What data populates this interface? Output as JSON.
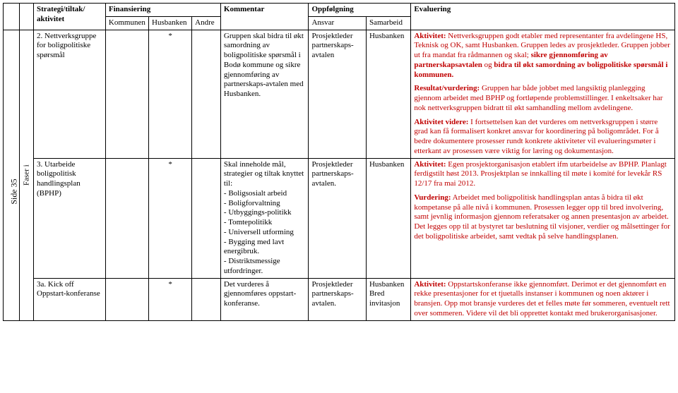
{
  "sideLabel": "Side 35",
  "headers": {
    "strategi": "Strategi/tiltak/ aktivitet",
    "finansiering": "Finansiering",
    "kommunen": "Kommunen",
    "husbanken": "Husbanken",
    "andre": "Andre",
    "kommentar": "Kommentar",
    "oppfolgning": "Oppfølgning",
    "ansvar": "Ansvar",
    "samarbeid": "Samarbeid",
    "evaluering": "Evaluering"
  },
  "faserLabel": "Faser i",
  "row1": {
    "strategi": "2. Nettverksgruppe for boligpolitiske spørsmål",
    "fin": "*",
    "kommentar": "Gruppen skal bidra til økt samordning av boligpolitiske spørsmål i Bodø kommune og sikre gjennomføring av partnerskaps-avtalen med Husbanken.",
    "ansvar": "Prosjektleder partnerskaps-avtalen",
    "samarbeid": "Husbanken",
    "eval_p1_a": "Aktivitet:",
    "eval_p1_b": " Nettverksgruppen godt etabler med representanter fra avdelingene HS, Teknisk og OK, samt Husbanken. Gruppen ledes av prosjektleder. Gruppen jobber ut fra mandat fra rådmannen og skal; ",
    "eval_p1_c": "sikre gjennomføring av partnerskapsavtalen",
    "eval_p1_d": " og ",
    "eval_p1_e": "bidra til økt samordning av boligpolitiske spørsmål i kommunen.",
    "eval_p2_a": "Resultat/vurdering:",
    "eval_p2_b": " Gruppen har både jobbet med langsiktig planlegging gjennom arbeidet med BPHP og fortløpende problemstillinger. I enkeltsaker har nok nettverksgruppen bidratt til økt samhandling mellom avdelingene.",
    "eval_p3_a": "Aktivitet videre:",
    "eval_p3_b": " I fortsettelsen kan det vurderes om nettverksgruppen i større grad kan få formalisert konkret ansvar for koordinering på boligområdet. For å bedre dokumentere prosesser rundt konkrete aktiviteter vil evalueringsmøter i etterkant av prosessen være viktig for læring og dokumentasjon."
  },
  "row2": {
    "strategi": "3. Utarbeide boligpolitisk handlingsplan (BPHP)",
    "fin": "*",
    "kom_intro": "Skal inneholde mål, strategier og tiltak knyttet til:",
    "kom_b1": "- Boligsosialt arbeid",
    "kom_b2": "- Boligforvaltning",
    "kom_b3": "- Utbyggings-politikk",
    "kom_b4": "- Tomtepolitikk",
    "kom_b5": "- Universell utforming",
    "kom_b6": "- Bygging med lavt energibruk.",
    "kom_b7": "- Distriktsmessige utfordringer.",
    "ansvar": "Prosjektleder partnerskaps-avtalen.",
    "samarbeid": "Husbanken",
    "eval_p1_a": "Aktivitet:",
    "eval_p1_b": " Egen prosjektorganisasjon etablert ifm utarbeidelse av BPHP. Planlagt ferdigstilt høst 2013. Prosjektplan se innkalling til møte i komité for levekår RS 12/17 fra mai 2012.",
    "eval_p2_a": "Vurdering:",
    "eval_p2_b": " Arbeidet med boligpolitisk handlingsplan antas å bidra til økt kompetanse på alle nivå i kommunen. Prosessen legger opp til bred involvering, samt jevnlig informasjon gjennom referatsaker og annen presentasjon av arbeidet. Det legges opp til at bystyret tar beslutning til visjoner, verdier og målsettinger for det boligpolitiske arbeidet, samt vedtak på selve handlingsplanen."
  },
  "row3": {
    "strategi": "3a. Kick off Oppstart-konferanse",
    "fin": "*",
    "kommentar": "Det vurderes å gjennomføres oppstart-konferanse.",
    "ansvar": "Prosjektleder partnerskaps-avtalen.",
    "samarbeid": "Husbanken Bred invitasjon",
    "eval_a": "Aktivitet:",
    "eval_b": " Oppstartskonferanse ikke gjennomført. Derimot er det gjennomført en rekke presentasjoner for et tjuetalls instanser i kommunen og noen aktører i bransjen. Opp mot bransje vurderes det et felles møte før sommeren, eventuelt rett over sommeren. Videre vil det bli opprettet kontakt med brukerorganisasjoner."
  }
}
